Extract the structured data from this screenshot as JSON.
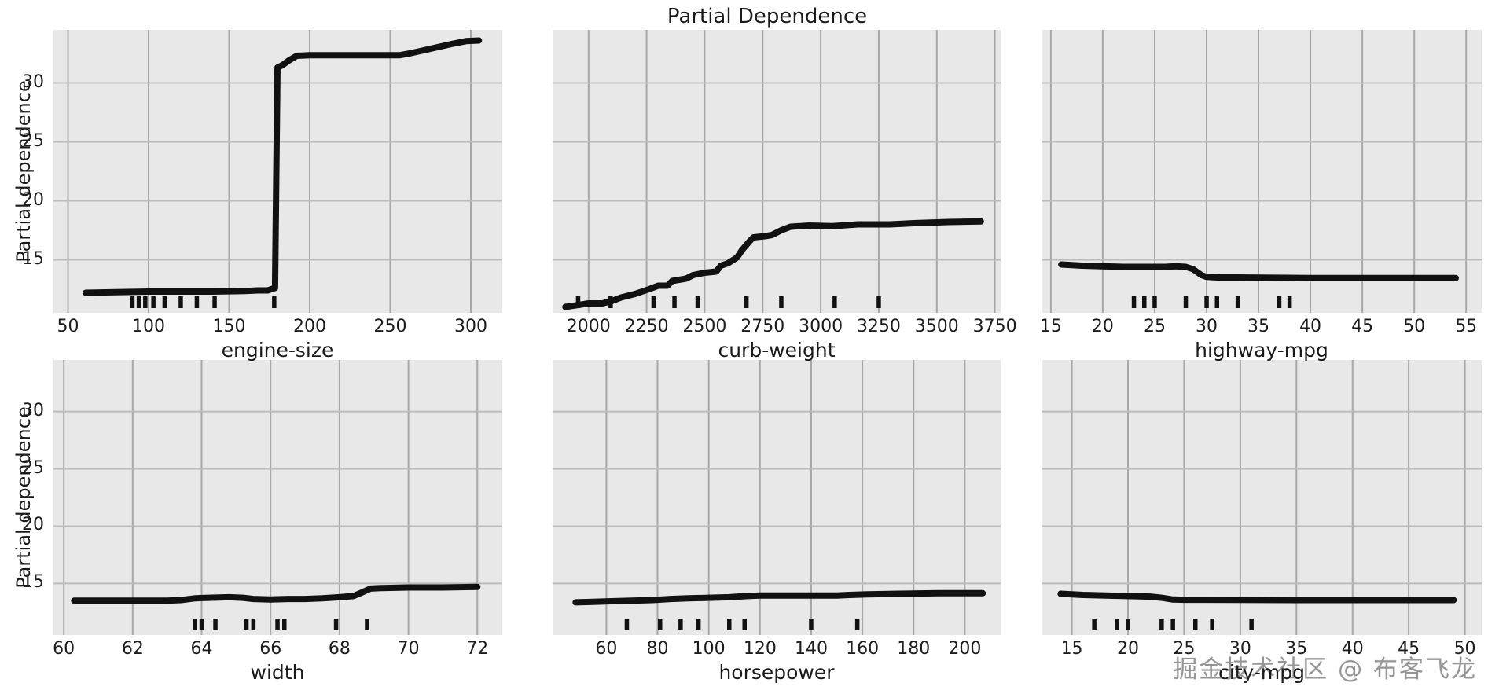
{
  "watermark": "掘金技术社区 @ 布客飞龙",
  "colors": {
    "plot_bg": "#e9e8e8",
    "grid_vertical": "#a8a8a8",
    "grid_horizontal": "#bcbcbc",
    "line": "#111111"
  },
  "chart_data": {
    "type": "line",
    "title": "Partial Dependence",
    "ylabel": "Partial dependence",
    "legend": "none",
    "grid": "on",
    "subplots": [
      {
        "feature": "engine-size",
        "xlabel": "engine-size",
        "xlim": [
          41,
          319
        ],
        "xticks": [
          50,
          100,
          150,
          200,
          250,
          300
        ],
        "ylim": [
          10.5,
          34.5
        ],
        "yticks": [
          15,
          20,
          25,
          30
        ],
        "show_yticklabels": true,
        "series": [
          {
            "name": "partial dependence",
            "x": [
              61,
              80,
              100,
              120,
              140,
              160,
              168,
              174,
              177,
              178.5,
              180,
              183,
              187,
              192,
              200,
              220,
              240,
              256,
              262,
              275,
              288,
              297,
              305
            ],
            "y": [
              12.2,
              12.25,
              12.3,
              12.3,
              12.3,
              12.35,
              12.4,
              12.4,
              12.55,
              12.6,
              31.3,
              31.5,
              31.9,
              32.3,
              32.35,
              32.35,
              32.35,
              32.35,
              32.5,
              32.9,
              33.3,
              33.55,
              33.6
            ]
          }
        ],
        "rug_x": [
          90,
          94,
          98,
          103,
          110,
          120,
          130,
          141,
          178
        ]
      },
      {
        "feature": "curb-weight",
        "xlabel": "curb-weight",
        "xlim": [
          1845,
          3775
        ],
        "xticks": [
          2000,
          2250,
          2500,
          2750,
          3000,
          3250,
          3500,
          3750
        ],
        "ylim": [
          10.5,
          34.5
        ],
        "yticks": [
          15,
          20,
          25,
          30
        ],
        "show_yticklabels": false,
        "series": [
          {
            "name": "partial dependence",
            "x": [
              1900,
              1950,
              2000,
              2060,
              2100,
              2140,
              2200,
              2260,
              2300,
              2340,
              2360,
              2420,
              2450,
              2500,
              2550,
              2570,
              2600,
              2640,
              2660,
              2690,
              2710,
              2760,
              2790,
              2830,
              2870,
              2950,
              3050,
              3160,
              3300,
              3400,
              3550,
              3690
            ],
            "y": [
              11.0,
              11.15,
              11.3,
              11.3,
              11.5,
              11.8,
              12.1,
              12.5,
              12.8,
              12.8,
              13.2,
              13.4,
              13.7,
              13.9,
              14.0,
              14.5,
              14.7,
              15.2,
              15.8,
              16.5,
              16.9,
              17.0,
              17.1,
              17.5,
              17.8,
              17.9,
              17.85,
              18.0,
              18.0,
              18.1,
              18.2,
              18.25
            ]
          }
        ],
        "rug_x": [
          1955,
          2095,
          2280,
          2370,
          2470,
          2680,
          2830,
          3060,
          3250
        ]
      },
      {
        "feature": "highway-mpg",
        "xlabel": "highway-mpg",
        "xlim": [
          14.1,
          56.5
        ],
        "xticks": [
          15,
          20,
          25,
          30,
          35,
          40,
          45,
          50,
          55
        ],
        "ylim": [
          10.5,
          34.5
        ],
        "yticks": [
          15,
          20,
          25,
          30
        ],
        "show_yticklabels": false,
        "series": [
          {
            "name": "partial dependence",
            "x": [
              16,
              18,
              20,
              22,
              24,
              26,
              27,
              28,
              28.7,
              29.5,
              30,
              31,
              33,
              40,
              54
            ],
            "y": [
              14.6,
              14.5,
              14.45,
              14.4,
              14.4,
              14.4,
              14.45,
              14.4,
              14.2,
              13.7,
              13.55,
              13.5,
              13.5,
              13.45,
              13.45
            ]
          }
        ],
        "rug_x": [
          23,
          24,
          25,
          28,
          30,
          31,
          33,
          37,
          38
        ]
      },
      {
        "feature": "width",
        "xlabel": "width",
        "xlim": [
          59.7,
          72.7
        ],
        "xticks": [
          60,
          62,
          64,
          66,
          68,
          70,
          72
        ],
        "ylim": [
          10.5,
          34.5
        ],
        "yticks": [
          15,
          20,
          25,
          30
        ],
        "show_yticklabels": true,
        "series": [
          {
            "name": "partial dependence",
            "x": [
              60.3,
              61,
              62,
              63,
              63.4,
              63.8,
              64.2,
              64.8,
              65.2,
              65.5,
              66,
              66.5,
              67,
              67.5,
              68,
              68.4,
              68.6,
              68.9,
              69.2,
              70,
              71,
              72
            ],
            "y": [
              13.5,
              13.5,
              13.5,
              13.5,
              13.55,
              13.7,
              13.75,
              13.8,
              13.75,
              13.65,
              13.6,
              13.65,
              13.65,
              13.7,
              13.8,
              13.9,
              14.15,
              14.55,
              14.6,
              14.65,
              14.65,
              14.7
            ]
          }
        ],
        "rug_x": [
          63.8,
          64.0,
          64.4,
          65.3,
          65.5,
          66.2,
          66.4,
          67.9,
          68.8
        ]
      },
      {
        "feature": "horsepower",
        "xlabel": "horsepower",
        "xlim": [
          39,
          214
        ],
        "xticks": [
          60,
          80,
          100,
          120,
          140,
          160,
          180,
          200
        ],
        "ylim": [
          10.5,
          34.5
        ],
        "yticks": [
          15,
          20,
          25,
          30
        ],
        "show_yticklabels": false,
        "series": [
          {
            "name": "partial dependence",
            "x": [
              48,
              55,
              62,
              70,
              78,
              85,
              92,
              100,
              108,
              115,
              120,
              130,
              140,
              150,
              155,
              162,
              175,
              190,
              207
            ],
            "y": [
              13.35,
              13.4,
              13.45,
              13.5,
              13.55,
              13.65,
              13.7,
              13.75,
              13.8,
              13.9,
              13.95,
              13.95,
              13.95,
              13.95,
              14.0,
              14.05,
              14.1,
              14.15,
              14.15
            ]
          }
        ],
        "rug_x": [
          68,
          81,
          89,
          96,
          108,
          114,
          140,
          158
        ]
      },
      {
        "feature": "city-mpg",
        "xlabel": "city-mpg",
        "xlim": [
          12.3,
          51.5
        ],
        "xticks": [
          15,
          20,
          25,
          30,
          35,
          40,
          45,
          50
        ],
        "ylim": [
          10.5,
          34.5
        ],
        "yticks": [
          15,
          20,
          25,
          30
        ],
        "show_yticklabels": false,
        "series": [
          {
            "name": "partial dependence",
            "x": [
              14,
              16,
              18,
              20,
              22,
              23,
              24,
              25,
              27,
              30,
              35,
              49
            ],
            "y": [
              14.1,
              14.0,
              13.95,
              13.9,
              13.85,
              13.75,
              13.6,
              13.58,
              13.58,
              13.57,
              13.55,
              13.55
            ]
          }
        ],
        "rug_x": [
          17,
          19,
          20,
          23,
          24,
          26,
          27.5,
          31
        ]
      }
    ]
  }
}
